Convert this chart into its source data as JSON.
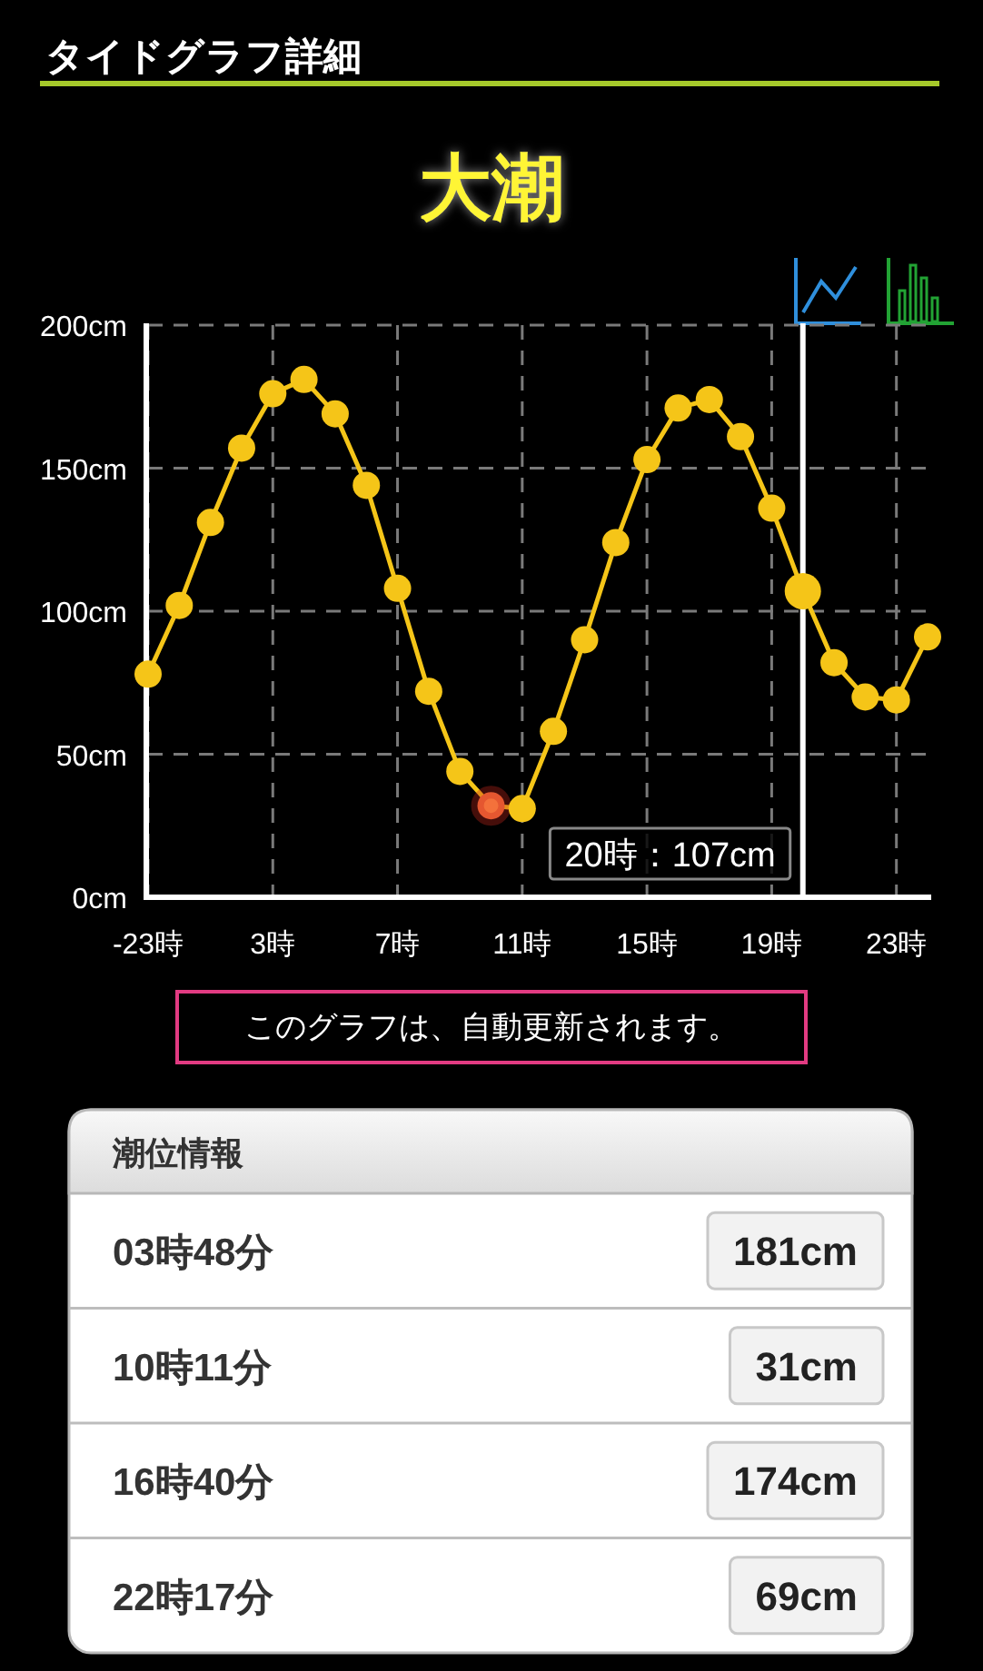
{
  "chart_data": [
    {
      "type": "line",
      "title": "タイドグラフ詳細",
      "subtitle": "大潮",
      "categories": [
        "-23時",
        null,
        null,
        null,
        "3時",
        null,
        null,
        null,
        "7時",
        null,
        null,
        null,
        "11時",
        null,
        null,
        null,
        "15時",
        null,
        null,
        null,
        "19時",
        null,
        null,
        null,
        "23時",
        null
      ],
      "series": [
        {
          "color": "#f5c518",
          "colors": [
            "#f5c518",
            "#f5c518",
            "#f5c518",
            "#f5c518",
            "#f5c518",
            "#f5c518",
            "#f5c518",
            "#f5c518",
            "#f5c518",
            "#f5c518",
            "#f5c518",
            "#f4713b",
            "#f5c518",
            "#f5c518",
            "#f5c518",
            "#f5c518",
            "#f5c518",
            "#f5c518",
            "#f5c518",
            "#f5c518",
            "#f5c518",
            "#f5c518",
            "#f5c518",
            "#f5c518",
            "#f5c518",
            "#f5c518"
          ],
          "values": [
            78,
            102,
            131,
            157,
            176,
            181,
            169,
            144,
            108,
            72,
            44,
            32,
            31,
            58,
            90,
            124,
            153,
            171,
            174,
            161,
            136,
            107,
            82,
            70,
            69,
            91
          ]
        }
      ],
      "ylim": [
        0,
        200
      ],
      "yticks": [
        {
          "value": 0,
          "label": "0cm"
        },
        {
          "value": 50,
          "label": "50cm"
        },
        {
          "value": 100,
          "label": "100cm"
        },
        {
          "value": 150,
          "label": "150cm"
        },
        {
          "value": 200,
          "label": "200cm"
        }
      ],
      "grid": true,
      "marker": "circle",
      "line_style": "solid",
      "annotations": [
        "20時：107cm",
        "このグラフは、自動更新されます。"
      ]
    },
    {
      "type": "other",
      "title": "潮位情報",
      "annotations": [
        "03時48分",
        "181cm",
        "10時11分",
        "31cm",
        "16時40分",
        "174cm",
        "22時17分",
        "69cm"
      ]
    }
  ]
}
